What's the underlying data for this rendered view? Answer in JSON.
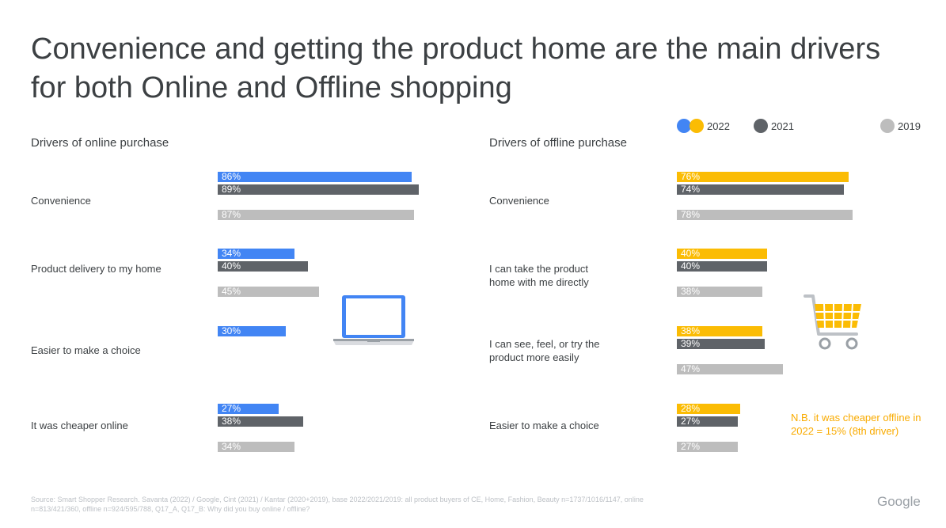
{
  "title": "Convenience and getting the product home are the main drivers for both Online and Offline shopping",
  "legend": [
    {
      "label": "2022",
      "colors": [
        "#4285f4",
        "#fbbc04"
      ]
    },
    {
      "label": "2021",
      "colors": [
        "#5f6368"
      ]
    },
    {
      "label": "2019",
      "colors": [
        "#bdbdbd"
      ]
    }
  ],
  "colors": {
    "online_2022": "#4285f4",
    "offline_2022": "#fbbc04",
    "y2021": "#5f6368",
    "y2019": "#bdbdbd"
  },
  "icons": {
    "online": "laptop-icon",
    "offline": "shopping-cart-icon"
  },
  "chart_data": [
    {
      "type": "bar",
      "orientation": "horizontal",
      "title": "Drivers of online purchase",
      "categories": [
        "Convenience",
        "Product delivery to my home",
        "Easier to make a choice",
        "It was cheaper online"
      ],
      "series": [
        {
          "name": "2022",
          "values": [
            86,
            34,
            30,
            27
          ],
          "labels": [
            "86%",
            "34%",
            "30%",
            "27%"
          ]
        },
        {
          "name": "2021",
          "values": [
            89,
            40,
            null,
            38
          ],
          "labels": [
            "89%",
            "40%",
            "",
            "38%"
          ]
        },
        {
          "name": "2019",
          "values": [
            87,
            45,
            null,
            34
          ],
          "labels": [
            "87%",
            "45%",
            "",
            "34%"
          ]
        }
      ],
      "xlim": [
        0,
        100
      ]
    },
    {
      "type": "bar",
      "orientation": "horizontal",
      "title": "Drivers of offline purchase",
      "categories": [
        "Convenience",
        "I can take the product home with me directly",
        "I can see, feel, or try the product more easily",
        "Easier to make a choice"
      ],
      "series": [
        {
          "name": "2022",
          "values": [
            76,
            40,
            38,
            28
          ],
          "labels": [
            "76%",
            "40%",
            "38%",
            "28%"
          ]
        },
        {
          "name": "2021",
          "values": [
            74,
            40,
            39,
            27
          ],
          "labels": [
            "74%",
            "40%",
            "39%",
            "27%"
          ]
        },
        {
          "name": "2019",
          "values": [
            78,
            38,
            47,
            27
          ],
          "labels": [
            "78%",
            "38%",
            "47%",
            "27%"
          ]
        }
      ],
      "xlim": [
        0,
        100
      ]
    }
  ],
  "note": "N.B. it was cheaper offline in 2022 = 15% (8th driver)",
  "footer": "Source: Smart Shopper Research. Savanta (2022) / Google, Cint (2021) / Kantar (2020+2019), base 2022/2021/2019: all product buyers of CE, Home, Fashion, Beauty n=1737/1016/1147, online n=813/421/360, offline n=924/595/788, Q17_A, Q17_B: Why did you buy online / offline?",
  "brand": "Google"
}
